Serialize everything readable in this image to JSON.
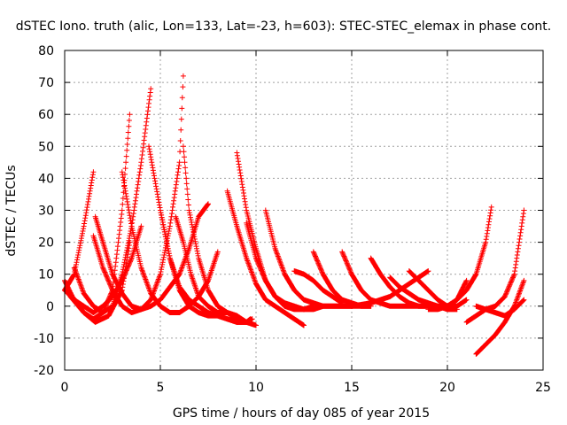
{
  "chart_data": {
    "type": "scatter",
    "title": "dSTEC Iono. truth (alic, Lon=133, Lat=-23, h=603): STEC-STEC_elemax in phase cont.",
    "xlabel": "GPS time / hours of day 085 of year 2015",
    "ylabel": "dSTEC  / TECUs",
    "xlim": [
      0,
      25
    ],
    "ylim": [
      -20,
      80
    ],
    "xticks": [
      0,
      5,
      10,
      15,
      20,
      25
    ],
    "yticks": [
      -20,
      -10,
      0,
      10,
      20,
      30,
      40,
      50,
      60,
      70,
      80
    ],
    "grid": true,
    "marker": "+",
    "color": "#ff0000",
    "arcs": [
      {
        "x": [
          0.0,
          0.5,
          1.0,
          1.5
        ],
        "y": [
          5,
          10,
          25,
          42
        ]
      },
      {
        "x": [
          0.0,
          0.4,
          1.0,
          1.5,
          2.0,
          2.5,
          3.0,
          3.4
        ],
        "y": [
          8,
          3,
          -2,
          -4,
          -2,
          5,
          30,
          60
        ]
      },
      {
        "x": [
          0.3,
          1.0,
          1.6,
          2.3,
          3.0,
          3.4
        ],
        "y": [
          3,
          -2,
          -5,
          -3,
          5,
          20
        ]
      },
      {
        "x": [
          0.5,
          1.0,
          1.5,
          2.0,
          2.5,
          3.0,
          3.5,
          4.0,
          4.5
        ],
        "y": [
          12,
          4,
          0,
          -2,
          0,
          10,
          25,
          45,
          68
        ]
      },
      {
        "x": [
          0.0,
          0.5,
          1.0,
          1.5,
          2.0,
          2.5,
          3.0,
          3.5,
          4.0
        ],
        "y": [
          5,
          2,
          0,
          -2,
          0,
          3,
          8,
          15,
          25
        ]
      },
      {
        "x": [
          1.6,
          2.0,
          2.5,
          3.0,
          3.5,
          4.0,
          4.5,
          5.0,
          5.5,
          6.0,
          6.2
        ],
        "y": [
          28,
          20,
          10,
          4,
          0,
          -1,
          2,
          10,
          25,
          45,
          72
        ]
      },
      {
        "x": [
          1.5,
          2.0,
          2.5,
          3.0,
          3.5,
          4.0,
          4.5,
          5.0,
          5.5,
          6.0,
          6.5,
          7.0,
          7.5
        ],
        "y": [
          22,
          12,
          5,
          0,
          -2,
          -1,
          0,
          2,
          6,
          10,
          18,
          28,
          32
        ]
      },
      {
        "x": [
          3.0,
          3.5,
          4.0,
          4.5,
          5.0,
          5.5,
          6.0,
          6.5,
          7.0,
          7.5,
          8.0
        ],
        "y": [
          42,
          25,
          12,
          4,
          0,
          -2,
          -2,
          0,
          3,
          8,
          17
        ]
      },
      {
        "x": [
          4.4,
          5.0,
          5.5,
          6.0,
          6.5,
          7.0,
          7.5,
          8.0,
          8.5,
          9.0,
          9.5,
          9.8
        ],
        "y": [
          50,
          30,
          15,
          5,
          0,
          -2,
          -3,
          -3,
          -4,
          -5,
          -5,
          -4
        ]
      },
      {
        "x": [
          5.0,
          5.5,
          6.0,
          6.5,
          7.0,
          7.5,
          8.0,
          8.5,
          9.0,
          9.5,
          9.7
        ],
        "y": [
          30,
          15,
          6,
          2,
          0,
          -2,
          -3,
          -4,
          -5,
          -5,
          -4
        ]
      },
      {
        "x": [
          5.8,
          6.2,
          6.6,
          7.0,
          7.5,
          8.0,
          8.5,
          9.0,
          9.5
        ],
        "y": [
          28,
          20,
          10,
          3,
          0,
          -2,
          -2,
          -4,
          -5
        ]
      },
      {
        "x": [
          6.2,
          6.5,
          7.0,
          7.5,
          8.0,
          8.5,
          9.0,
          9.5,
          10.0
        ],
        "y": [
          50,
          30,
          15,
          5,
          0,
          -2,
          -3,
          -5,
          -6
        ]
      },
      {
        "x": [
          8.5,
          9.0,
          9.5,
          10.0,
          10.5,
          11.0,
          11.5,
          12.0,
          12.5
        ],
        "y": [
          36,
          25,
          15,
          7,
          2,
          0,
          -2,
          -4,
          -6
        ]
      },
      {
        "x": [
          9.0,
          9.5,
          10.0,
          10.5,
          11.0,
          11.5,
          12.0,
          12.5,
          13.0
        ],
        "y": [
          48,
          30,
          18,
          8,
          3,
          0,
          -1,
          -1,
          0
        ]
      },
      {
        "x": [
          9.5,
          10.0,
          10.5,
          11.0,
          11.5,
          12.0,
          12.5,
          13.0,
          13.5,
          14.0,
          14.5,
          15.0
        ],
        "y": [
          26,
          15,
          8,
          3,
          1,
          0,
          -1,
          -1,
          0,
          0,
          0,
          0
        ]
      },
      {
        "x": [
          10.5,
          11.0,
          11.5,
          12.0,
          12.5,
          13.0,
          13.5,
          14.0,
          14.5,
          15.0,
          15.5,
          16.0
        ],
        "y": [
          30,
          18,
          10,
          5,
          2,
          1,
          0,
          0,
          0,
          0,
          0,
          0
        ]
      },
      {
        "x": [
          13.0,
          13.5,
          14.0,
          14.5,
          15.0,
          15.5,
          16.0
        ],
        "y": [
          17,
          10,
          5,
          2,
          1,
          0,
          0
        ]
      },
      {
        "x": [
          14.5,
          15.0,
          15.5,
          16.0,
          16.5,
          17.0,
          17.5,
          18.0,
          18.5,
          19.0
        ],
        "y": [
          17,
          10,
          5,
          2,
          1,
          0,
          0,
          0,
          0,
          0
        ]
      },
      {
        "x": [
          12.0,
          12.5,
          13.0,
          13.5,
          14.0,
          14.5
        ],
        "y": [
          11,
          10,
          8,
          5,
          3,
          1
        ]
      },
      {
        "x": [
          16.0,
          16.5,
          17.0,
          17.5,
          18.0,
          18.5,
          19.0,
          19.5,
          20.0
        ],
        "y": [
          15,
          10,
          6,
          3,
          1,
          0,
          0,
          0,
          0
        ]
      },
      {
        "x": [
          17.0,
          17.5,
          18.0,
          18.5,
          19.0,
          19.5,
          20.0,
          20.5
        ],
        "y": [
          9,
          6,
          4,
          2,
          1,
          0,
          -1,
          -1
        ]
      },
      {
        "x": [
          18.0,
          18.5,
          19.0,
          19.5,
          20.0,
          20.5,
          21.0
        ],
        "y": [
          11,
          8,
          5,
          2,
          0,
          0,
          2
        ]
      },
      {
        "x": [
          15.0,
          16.0,
          17.0,
          17.5,
          18.0,
          18.5,
          19.0
        ],
        "y": [
          0,
          1,
          3,
          5,
          7,
          9,
          11
        ]
      },
      {
        "x": [
          19.0,
          19.5,
          20.0,
          20.5,
          21.0
        ],
        "y": [
          -1,
          -1,
          0,
          2,
          8
        ]
      },
      {
        "x": [
          20.0,
          20.5,
          21.0,
          21.5,
          22.0,
          22.3
        ],
        "y": [
          0,
          2,
          5,
          10,
          20,
          31
        ]
      },
      {
        "x": [
          21.0,
          21.5,
          22.0,
          22.5,
          23.0,
          23.5,
          24.0
        ],
        "y": [
          -5,
          -3,
          -1,
          0,
          3,
          10,
          30
        ]
      },
      {
        "x": [
          21.5,
          22.0,
          22.5,
          23.0,
          23.5,
          24.0
        ],
        "y": [
          -15,
          -12,
          -9,
          -5,
          0,
          8
        ]
      },
      {
        "x": [
          21.5,
          22.0,
          22.5,
          23.0,
          23.5,
          24.0
        ],
        "y": [
          0,
          -1,
          -2,
          -3,
          -1,
          2
        ]
      }
    ]
  }
}
